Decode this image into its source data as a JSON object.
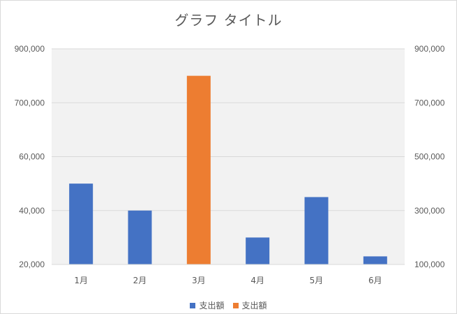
{
  "chart_data": {
    "type": "bar",
    "title": "グラフ タイトル",
    "categories": [
      "1月",
      "2月",
      "3月",
      "4月",
      "5月",
      "6月"
    ],
    "y_ticks_left": [
      "20,000",
      "40,000",
      "60,000",
      "700,000",
      "900,000"
    ],
    "y_ticks_right": [
      "100,000",
      "300,000",
      "500,000",
      "700,000",
      "900,000"
    ],
    "series": [
      {
        "name": "支出額",
        "axis": "left",
        "color": "#4472C4",
        "values": [
          50000,
          40000,
          null,
          30000,
          45000,
          23000
        ]
      },
      {
        "name": "支出額",
        "axis": "right",
        "color": "#ED7D31",
        "values": [
          null,
          null,
          800000,
          null,
          null,
          null
        ]
      }
    ],
    "grid": true,
    "legend_position": "bottom",
    "plot_background": "#F2F2F2"
  }
}
